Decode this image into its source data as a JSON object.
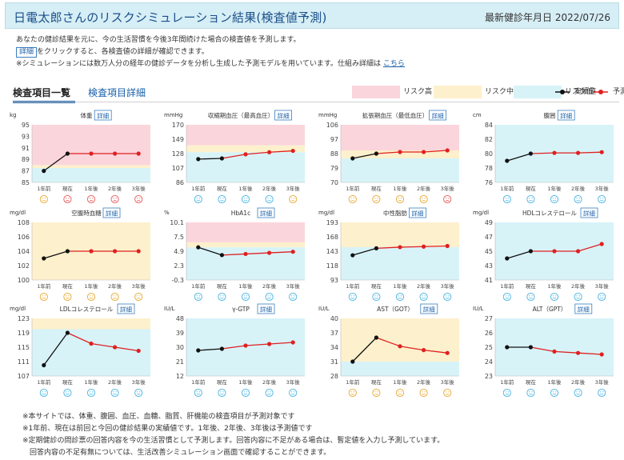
{
  "header": {
    "title": "日電太郎さんのリスクシミュレーション結果(検査値予測)",
    "date_label": "最新健診年月日 2022/07/26"
  },
  "intro": {
    "line1": "あなたの健診結果を元に、今の生活習慣を今後3年間続けた場合の検査値を予測します。",
    "line2_badge": "詳細",
    "line2_text": "をクリックすると、各検査値の詳細が確認できます。",
    "line3_text": "※シミュレーションには数万人分の経年の健診データを分析し生成した予測モデルを用いています。仕組み詳細は",
    "line3_link": "こちら"
  },
  "tabs": {
    "active": "検査項目一覧",
    "other": "検査項目詳細"
  },
  "legend": {
    "high": "リスク高",
    "mid": "リスク中",
    "low": "リスク低",
    "actual": "実績値",
    "predicted": "予測値"
  },
  "colors": {
    "risk_high": "#fbd5dc",
    "risk_mid": "#fdf0cc",
    "risk_low": "#d7f3f8",
    "actual_line": "#111111",
    "predicted_line": "#e02020",
    "face_smile": "#47b3e0",
    "face_neutral": "#e8a830",
    "face_sad": "#e85a5a"
  },
  "detail_button_label": "詳細",
  "x_labels": [
    "1年前",
    "現在",
    "1年後",
    "2年後",
    "3年後"
  ],
  "chart_data": [
    {
      "type": "line",
      "title": "体重",
      "unit": "kg",
      "yticks": [
        "95",
        "93",
        "91",
        "89",
        "87",
        "85"
      ],
      "ylim": [
        85,
        95
      ],
      "values": [
        87,
        90,
        90,
        90,
        90
      ],
      "bands": [
        {
          "risk": "high",
          "from": 88,
          "to": 95
        },
        {
          "risk": "mid",
          "from": 87.5,
          "to": 88
        },
        {
          "risk": "low",
          "from": 85,
          "to": 87.5
        }
      ],
      "faces": [
        "neutral",
        "sad",
        "sad",
        "sad",
        "sad"
      ]
    },
    {
      "type": "line",
      "title": "収縮期血圧（最高血圧）",
      "unit": "mmHg",
      "yticks": [
        "170",
        "149",
        "128",
        "107",
        "86"
      ],
      "ylim": [
        86,
        170
      ],
      "values": [
        120,
        121,
        127,
        130,
        132
      ],
      "bands": [
        {
          "risk": "high",
          "from": 140,
          "to": 170
        },
        {
          "risk": "mid",
          "from": 130,
          "to": 140
        },
        {
          "risk": "low",
          "from": 86,
          "to": 130
        }
      ],
      "faces": [
        "smile",
        "smile",
        "smile",
        "smile",
        "neutral"
      ]
    },
    {
      "type": "line",
      "title": "拡張期血圧（最低血圧）",
      "unit": "mmHg",
      "yticks": [
        "106",
        "97",
        "88",
        "79",
        "70"
      ],
      "ylim": [
        70,
        106
      ],
      "values": [
        85,
        88,
        89,
        89,
        90
      ],
      "bands": [
        {
          "risk": "high",
          "from": 90,
          "to": 106
        },
        {
          "risk": "mid",
          "from": 85,
          "to": 90
        },
        {
          "risk": "low",
          "from": 70,
          "to": 85
        }
      ],
      "faces": [
        "neutral",
        "neutral",
        "neutral",
        "neutral",
        "sad"
      ]
    },
    {
      "type": "line",
      "title": "腹囲",
      "unit": "cm",
      "yticks": [
        "84",
        "82",
        "80",
        "78",
        "76"
      ],
      "ylim": [
        76,
        84
      ],
      "values": [
        79,
        80,
        80.1,
        80.1,
        80.2
      ],
      "bands": [
        {
          "risk": "low",
          "from": 76,
          "to": 84
        }
      ],
      "faces": [
        "smile",
        "smile",
        "smile",
        "smile",
        "smile"
      ]
    },
    {
      "type": "line",
      "title": "空腹時血糖",
      "unit": "mg/dl",
      "yticks": [
        "108",
        "106",
        "104",
        "102",
        "100"
      ],
      "ylim": [
        100,
        108
      ],
      "values": [
        103,
        104,
        104,
        104,
        104
      ],
      "bands": [
        {
          "risk": "mid",
          "from": 100,
          "to": 108
        }
      ],
      "faces": [
        "neutral",
        "neutral",
        "neutral",
        "neutral",
        "neutral"
      ]
    },
    {
      "type": "line",
      "title": "HbA1c",
      "unit": "%",
      "yticks": [
        "10.1",
        "7.5",
        "4.9",
        "2.3",
        "-0.3"
      ],
      "ylim": [
        -0.3,
        10.1
      ],
      "values": [
        5.6,
        4.2,
        4.4,
        4.6,
        4.8
      ],
      "bands": [
        {
          "risk": "high",
          "from": 6.5,
          "to": 10.1
        },
        {
          "risk": "mid",
          "from": 5.6,
          "to": 6.5
        },
        {
          "risk": "low",
          "from": -0.3,
          "to": 5.6
        }
      ],
      "faces": [
        "smile",
        "smile",
        "smile",
        "smile",
        "smile"
      ]
    },
    {
      "type": "line",
      "title": "中性脂肪",
      "unit": "mg/dl",
      "yticks": [
        "193",
        "168",
        "143",
        "118",
        "93"
      ],
      "ylim": [
        93,
        193
      ],
      "values": [
        136,
        148,
        150,
        151,
        152
      ],
      "bands": [
        {
          "risk": "mid",
          "from": 150,
          "to": 193
        },
        {
          "risk": "low",
          "from": 93,
          "to": 150
        }
      ],
      "faces": [
        "smile",
        "smile",
        "smile",
        "smile",
        "smile"
      ]
    },
    {
      "type": "line",
      "title": "HDLコレステロール",
      "unit": "mg/dl",
      "yticks": [
        "49",
        "47",
        "45",
        "43",
        "41"
      ],
      "ylim": [
        41,
        49
      ],
      "values": [
        44,
        45,
        45,
        45,
        46
      ],
      "bands": [
        {
          "risk": "low",
          "from": 41,
          "to": 49
        }
      ],
      "faces": [
        "smile",
        "smile",
        "smile",
        "smile",
        "smile"
      ]
    },
    {
      "type": "line",
      "title": "LDLコレステロール",
      "unit": "mg/dl",
      "yticks": [
        "123",
        "119",
        "115",
        "111",
        "107"
      ],
      "ylim": [
        107,
        123
      ],
      "values": [
        110,
        119,
        116,
        115,
        114
      ],
      "bands": [
        {
          "risk": "mid",
          "from": 120,
          "to": 123
        },
        {
          "risk": "low",
          "from": 107,
          "to": 120
        }
      ],
      "faces": [
        "smile",
        "smile",
        "smile",
        "smile",
        "smile"
      ]
    },
    {
      "type": "line",
      "title": "γ-GTP",
      "unit": "IU/L",
      "yticks": [
        "48",
        "39",
        "30",
        "21",
        "12"
      ],
      "ylim": [
        12,
        48
      ],
      "values": [
        28,
        29,
        31,
        32,
        33
      ],
      "bands": [
        {
          "risk": "low",
          "from": 12,
          "to": 48
        }
      ],
      "faces": [
        "smile",
        "smile",
        "smile",
        "smile",
        "smile"
      ]
    },
    {
      "type": "line",
      "title": "AST（GOT）",
      "unit": "IU/L",
      "yticks": [
        "40",
        "37",
        "34",
        "31",
        "28"
      ],
      "ylim": [
        28,
        40
      ],
      "values": [
        31,
        36,
        34.2,
        33.4,
        32.8
      ],
      "bands": [
        {
          "risk": "mid",
          "from": 31,
          "to": 40
        },
        {
          "risk": "low",
          "from": 28,
          "to": 31
        }
      ],
      "faces": [
        "neutral",
        "neutral",
        "neutral",
        "neutral",
        "neutral"
      ]
    },
    {
      "type": "line",
      "title": "ALT（GPT）",
      "unit": "IU/L",
      "yticks": [
        "27",
        "26",
        "25",
        "24",
        "23"
      ],
      "ylim": [
        23,
        27
      ],
      "values": [
        25,
        25,
        24.7,
        24.6,
        24.5
      ],
      "bands": [
        {
          "risk": "low",
          "from": 23,
          "to": 27
        }
      ],
      "faces": [
        "smile",
        "smile",
        "smile",
        "smile",
        "smile"
      ]
    }
  ],
  "footer": {
    "line1": "※本サイトでは、体重、腹囲、血圧、血糖、脂質、肝機能の検査項目が予測対象です",
    "line2": "※1年前、現在は前回と今回の健診結果の実績値です。1年後、2年後、3年後は予測値です",
    "line3": "※定期健診の問診票の回答内容を今の生活習慣として予測します。回答内容に不足がある場合は、暫定値を入力し予測しています。",
    "line4": "　回答内容の不足有無については、生活改善シミュレーション画面で確認することができます。"
  }
}
